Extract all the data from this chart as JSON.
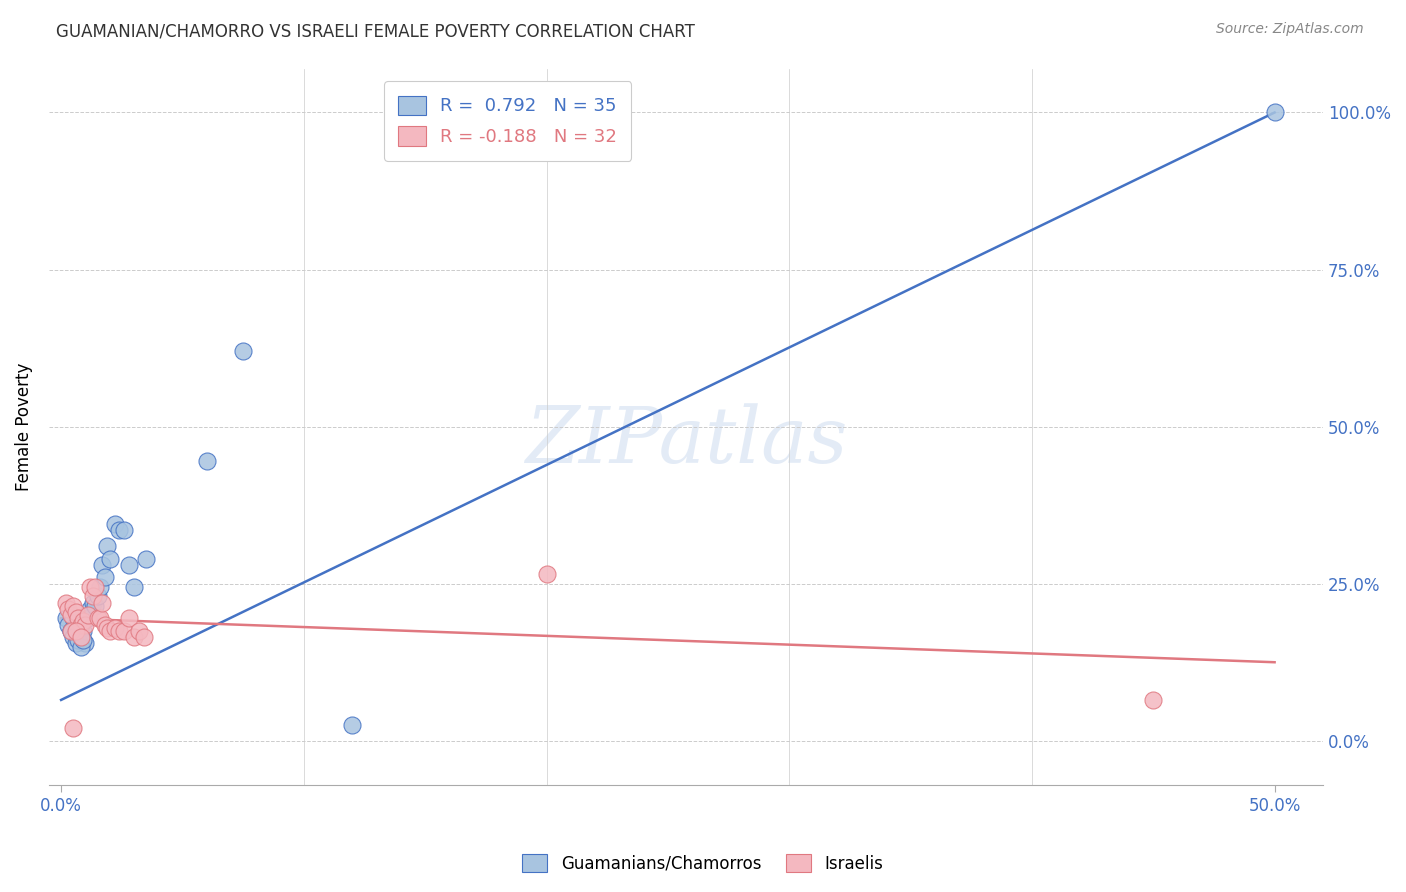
{
  "title": "GUAMANIAN/CHAMORRO VS ISRAELI FEMALE POVERTY CORRELATION CHART",
  "source": "Source: ZipAtlas.com",
  "ylabel": "Female Poverty",
  "yticks": [
    "0.0%",
    "25.0%",
    "50.0%",
    "75.0%",
    "100.0%"
  ],
  "ytick_vals": [
    0,
    0.25,
    0.5,
    0.75,
    1.0
  ],
  "xtick_positions": [
    0.0,
    0.5
  ],
  "xtick_labels": [
    "0.0%",
    "50.0%"
  ],
  "xlim": [
    -0.005,
    0.52
  ],
  "ylim": [
    -0.07,
    1.07
  ],
  "watermark": "ZIPatlas",
  "legend_blue_r": "R =  0.792",
  "legend_blue_n": "N = 35",
  "legend_pink_r": "R = -0.188",
  "legend_pink_n": "N = 32",
  "blue_color": "#a8c4e0",
  "pink_color": "#f4b8c0",
  "blue_line_color": "#4472c4",
  "pink_line_color": "#e07880",
  "blue_scatter": [
    [
      0.002,
      0.195
    ],
    [
      0.003,
      0.185
    ],
    [
      0.004,
      0.175
    ],
    [
      0.005,
      0.195
    ],
    [
      0.006,
      0.185
    ],
    [
      0.007,
      0.165
    ],
    [
      0.008,
      0.17
    ],
    [
      0.009,
      0.175
    ],
    [
      0.01,
      0.155
    ],
    [
      0.011,
      0.195
    ],
    [
      0.012,
      0.21
    ],
    [
      0.013,
      0.22
    ],
    [
      0.014,
      0.215
    ],
    [
      0.015,
      0.23
    ],
    [
      0.016,
      0.245
    ],
    [
      0.017,
      0.28
    ],
    [
      0.018,
      0.26
    ],
    [
      0.019,
      0.31
    ],
    [
      0.02,
      0.29
    ],
    [
      0.022,
      0.345
    ],
    [
      0.024,
      0.335
    ],
    [
      0.026,
      0.335
    ],
    [
      0.028,
      0.28
    ],
    [
      0.03,
      0.245
    ],
    [
      0.035,
      0.29
    ],
    [
      0.004,
      0.175
    ],
    [
      0.005,
      0.165
    ],
    [
      0.006,
      0.155
    ],
    [
      0.007,
      0.16
    ],
    [
      0.008,
      0.15
    ],
    [
      0.009,
      0.16
    ],
    [
      0.06,
      0.445
    ],
    [
      0.075,
      0.62
    ],
    [
      0.12,
      0.025
    ],
    [
      0.5,
      1.0
    ]
  ],
  "pink_scatter": [
    [
      0.002,
      0.22
    ],
    [
      0.003,
      0.21
    ],
    [
      0.004,
      0.2
    ],
    [
      0.005,
      0.215
    ],
    [
      0.006,
      0.205
    ],
    [
      0.007,
      0.195
    ],
    [
      0.008,
      0.185
    ],
    [
      0.009,
      0.19
    ],
    [
      0.01,
      0.185
    ],
    [
      0.011,
      0.2
    ],
    [
      0.012,
      0.245
    ],
    [
      0.013,
      0.23
    ],
    [
      0.014,
      0.245
    ],
    [
      0.015,
      0.195
    ],
    [
      0.016,
      0.195
    ],
    [
      0.017,
      0.22
    ],
    [
      0.018,
      0.185
    ],
    [
      0.019,
      0.18
    ],
    [
      0.02,
      0.175
    ],
    [
      0.022,
      0.18
    ],
    [
      0.024,
      0.175
    ],
    [
      0.026,
      0.175
    ],
    [
      0.028,
      0.195
    ],
    [
      0.03,
      0.165
    ],
    [
      0.032,
      0.175
    ],
    [
      0.034,
      0.165
    ],
    [
      0.004,
      0.175
    ],
    [
      0.006,
      0.175
    ],
    [
      0.008,
      0.165
    ],
    [
      0.2,
      0.265
    ],
    [
      0.45,
      0.065
    ],
    [
      0.005,
      0.02
    ]
  ],
  "blue_line_x": [
    0.0,
    0.5
  ],
  "blue_line_y": [
    0.065,
    1.0
  ],
  "pink_line_x": [
    0.0,
    0.5
  ],
  "pink_line_y": [
    0.195,
    0.125
  ]
}
